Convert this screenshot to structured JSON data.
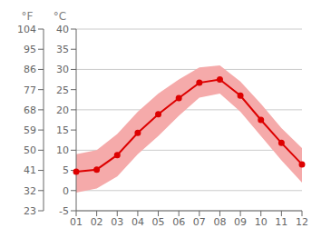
{
  "chart_data": {
    "type": "line",
    "categories": [
      "01",
      "02",
      "03",
      "04",
      "05",
      "06",
      "07",
      "08",
      "09",
      "10",
      "11",
      "12"
    ],
    "series": [
      {
        "type": "band",
        "color": "#f5aaaa",
        "low": [
          -0.5,
          0.5,
          3.5,
          9.0,
          13.5,
          18.5,
          23.0,
          24.0,
          19.5,
          13.5,
          7.5,
          2.0
        ],
        "high": [
          9.0,
          10.0,
          14.0,
          19.5,
          24.0,
          27.5,
          30.5,
          31.0,
          27.0,
          21.5,
          15.5,
          10.5
        ]
      },
      {
        "type": "line",
        "color": "#dd0000",
        "marker": "circle",
        "values": [
          4.7,
          5.2,
          8.8,
          14.3,
          18.9,
          22.9,
          26.7,
          27.5,
          23.5,
          17.5,
          11.8,
          6.5
        ]
      }
    ],
    "y_label": "°C",
    "ylim": [
      -5,
      40
    ],
    "yticks": [
      -5,
      0,
      5,
      10,
      15,
      20,
      25,
      30,
      35,
      40
    ],
    "y2_label": "°F",
    "y2lim": [
      23,
      104
    ],
    "y2ticks": [
      23,
      32,
      41,
      50,
      59,
      68,
      77,
      86,
      95,
      104
    ],
    "grid": true
  }
}
